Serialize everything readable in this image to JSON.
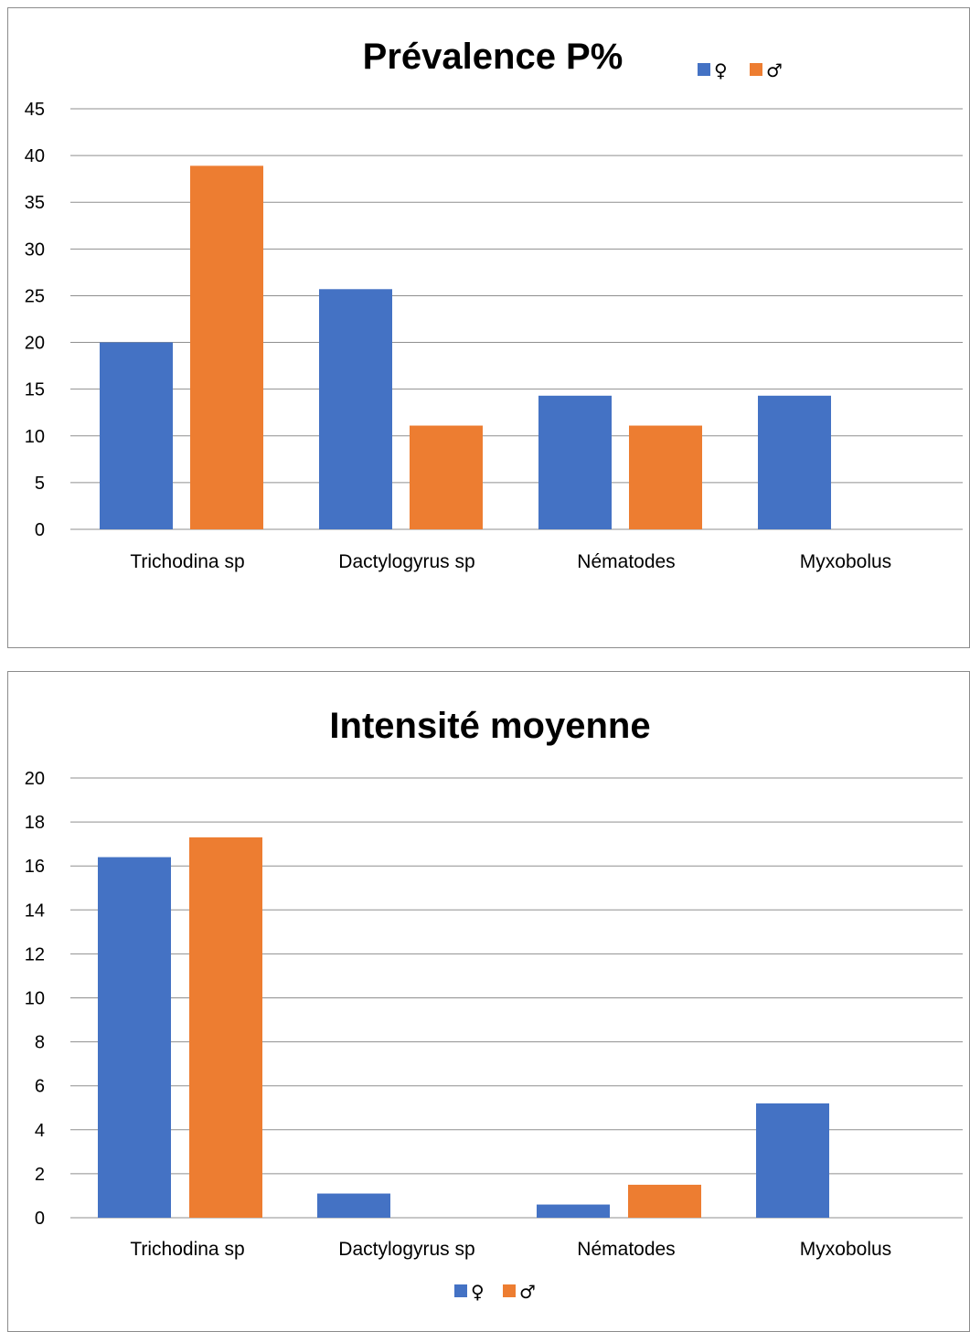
{
  "chart_data": [
    {
      "type": "bar",
      "title": "Prévalence P%",
      "categories": [
        "Trichodina sp",
        "Dactylogyrus sp",
        "Nématodes",
        "Myxobolus"
      ],
      "series": [
        {
          "name": "♀",
          "color": "#4472C4",
          "values": [
            20,
            25.7,
            14.3,
            14.3
          ]
        },
        {
          "name": "♂",
          "color": "#ED7D31",
          "values": [
            38.9,
            11.1,
            11.1,
            0
          ]
        }
      ],
      "ylim": [
        0,
        45
      ],
      "yticks": [
        "0",
        "5",
        "10",
        "15",
        "20",
        "25",
        "30",
        "35",
        "40",
        "45"
      ],
      "xlabel": "",
      "ylabel": "",
      "grid": true,
      "legend": "top-right"
    },
    {
      "type": "bar",
      "title": "Intensité moyenne",
      "categories": [
        "Trichodina sp",
        "Dactylogyrus sp",
        "Nématodes",
        "Myxobolus"
      ],
      "series": [
        {
          "name": "♀",
          "color": "#4472C4",
          "values": [
            16.4,
            1.1,
            0.6,
            5.2
          ]
        },
        {
          "name": "♂",
          "color": "#ED7D31",
          "values": [
            17.3,
            0,
            1.5,
            0
          ]
        }
      ],
      "ylim": [
        0,
        20
      ],
      "yticks": [
        "0",
        "2",
        "4",
        "6",
        "8",
        "10",
        "12",
        "14",
        "16",
        "18",
        "20"
      ],
      "xlabel": "",
      "ylabel": "",
      "grid": true,
      "legend": "bottom"
    }
  ]
}
